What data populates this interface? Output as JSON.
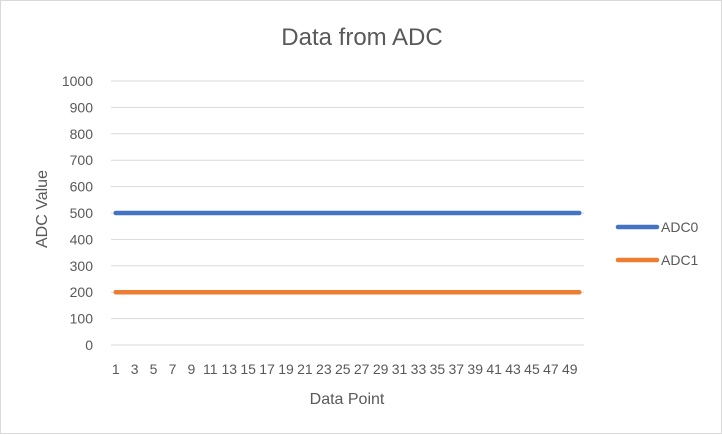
{
  "colors": {
    "adc0": "#4472c4",
    "adc1": "#ed7d31",
    "grid": "#d9d9d9",
    "text": "#595959"
  },
  "chart_data": {
    "type": "line",
    "title": "Data from ADC",
    "xlabel": "Data Point",
    "ylabel": "ADC Value",
    "x": [
      1,
      2,
      3,
      4,
      5,
      6,
      7,
      8,
      9,
      10,
      11,
      12,
      13,
      14,
      15,
      16,
      17,
      18,
      19,
      20,
      21,
      22,
      23,
      24,
      25,
      26,
      27,
      28,
      29,
      30,
      31,
      32,
      33,
      34,
      35,
      36,
      37,
      38,
      39,
      40,
      41,
      42,
      43,
      44,
      45,
      46,
      47,
      48,
      49,
      50
    ],
    "x_tick_labels": [
      "1",
      "3",
      "5",
      "7",
      "9",
      "11",
      "13",
      "15",
      "17",
      "19",
      "21",
      "23",
      "25",
      "27",
      "29",
      "31",
      "33",
      "35",
      "37",
      "39",
      "41",
      "43",
      "45",
      "47",
      "49"
    ],
    "y_ticks": [
      0,
      100,
      200,
      300,
      400,
      500,
      600,
      700,
      800,
      900,
      1000
    ],
    "ylim": [
      0,
      1000
    ],
    "grid": true,
    "legend_position": "right",
    "series": [
      {
        "name": "ADC0",
        "color": "#4472c4",
        "values": [
          500,
          500,
          500,
          500,
          500,
          500,
          500,
          500,
          500,
          500,
          500,
          500,
          500,
          500,
          500,
          500,
          500,
          500,
          500,
          500,
          500,
          500,
          500,
          500,
          500,
          500,
          500,
          500,
          500,
          500,
          500,
          500,
          500,
          500,
          500,
          500,
          500,
          500,
          500,
          500,
          500,
          500,
          500,
          500,
          500,
          500,
          500,
          500,
          500,
          500
        ]
      },
      {
        "name": "ADC1",
        "color": "#ed7d31",
        "values": [
          200,
          200,
          200,
          200,
          200,
          200,
          200,
          200,
          200,
          200,
          200,
          200,
          200,
          200,
          200,
          200,
          200,
          200,
          200,
          200,
          200,
          200,
          200,
          200,
          200,
          200,
          200,
          200,
          200,
          200,
          200,
          200,
          200,
          200,
          200,
          200,
          200,
          200,
          200,
          200,
          200,
          200,
          200,
          200,
          200,
          200,
          200,
          200,
          200,
          200
        ]
      }
    ]
  }
}
